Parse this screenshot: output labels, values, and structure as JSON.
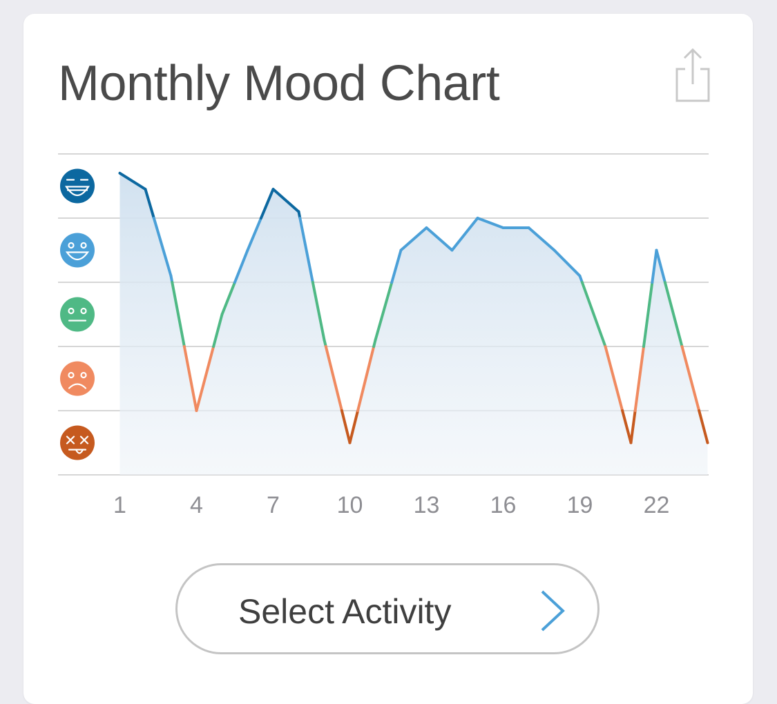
{
  "card": {
    "title": "Monthly Mood Chart",
    "share_icon": "share-icon"
  },
  "chart_data": {
    "type": "area",
    "title": "Monthly Mood Chart",
    "xlabel": "",
    "ylabel": "",
    "x_ticks": [
      "1",
      "4",
      "7",
      "10",
      "13",
      "16",
      "19",
      "22"
    ],
    "xlim": [
      1,
      24
    ],
    "ylim": [
      0,
      5
    ],
    "y_levels": [
      {
        "level": 1,
        "icon": "dead-face-icon",
        "color": "#c65a1f"
      },
      {
        "level": 2,
        "icon": "sad-face-icon",
        "color": "#f08a60"
      },
      {
        "level": 3,
        "icon": "neutral-face-icon",
        "color": "#4fb985"
      },
      {
        "level": 4,
        "icon": "smile-face-icon",
        "color": "#4ba0d8"
      },
      {
        "level": 5,
        "icon": "laughing-face-icon",
        "color": "#0c68a0"
      }
    ],
    "x": [
      1,
      2,
      3,
      4,
      5,
      6,
      7,
      8,
      9,
      10,
      11,
      12,
      13,
      14,
      15,
      16,
      17,
      18,
      19,
      20,
      21,
      22,
      23,
      24
    ],
    "values": [
      4.7,
      4.45,
      3.1,
      1,
      2.5,
      3.5,
      4.45,
      4.1,
      2.1,
      0.5,
      2.1,
      3.5,
      3.85,
      3.5,
      4,
      3.85,
      3.85,
      3.5,
      3.1,
      2,
      0.5,
      3.5,
      2,
      0.5
    ],
    "grid": true,
    "area_fill": "#cfe0ef"
  },
  "button": {
    "label": "Select Activity",
    "icon": "chevron-right-icon",
    "accent": "#4ba0d8"
  }
}
